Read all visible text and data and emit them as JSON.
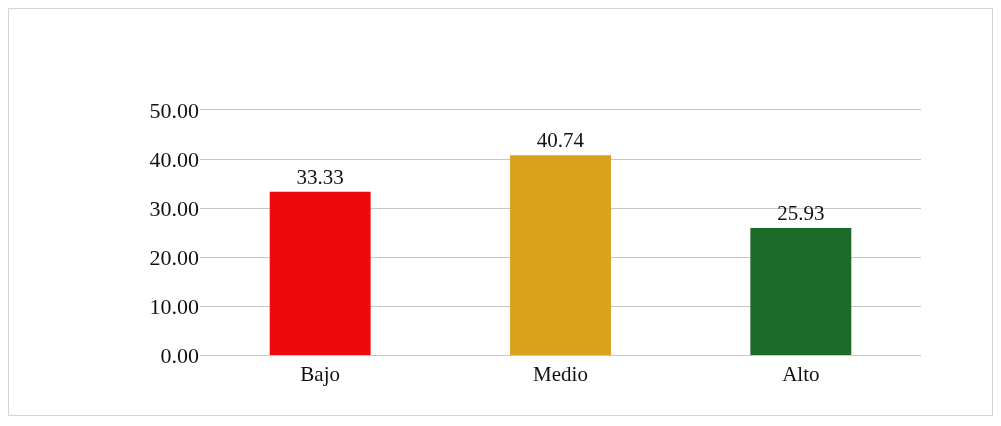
{
  "chart_data": {
    "type": "bar",
    "categories": [
      "Bajo",
      "Medio",
      "Alto"
    ],
    "values": [
      33.33,
      40.74,
      25.93
    ],
    "colors": [
      "#ee0a0a",
      "#d9a11c",
      "#1c6a2a"
    ],
    "ylim": [
      0,
      50
    ],
    "yticks": [
      {
        "value": 0,
        "label": "0.00"
      },
      {
        "value": 10,
        "label": "10.00"
      },
      {
        "value": 20,
        "label": "20.00"
      },
      {
        "value": 30,
        "label": "30.00"
      },
      {
        "value": 40,
        "label": "40.00"
      },
      {
        "value": 50,
        "label": "50.00"
      }
    ],
    "grid": "y",
    "data_labels": true
  }
}
